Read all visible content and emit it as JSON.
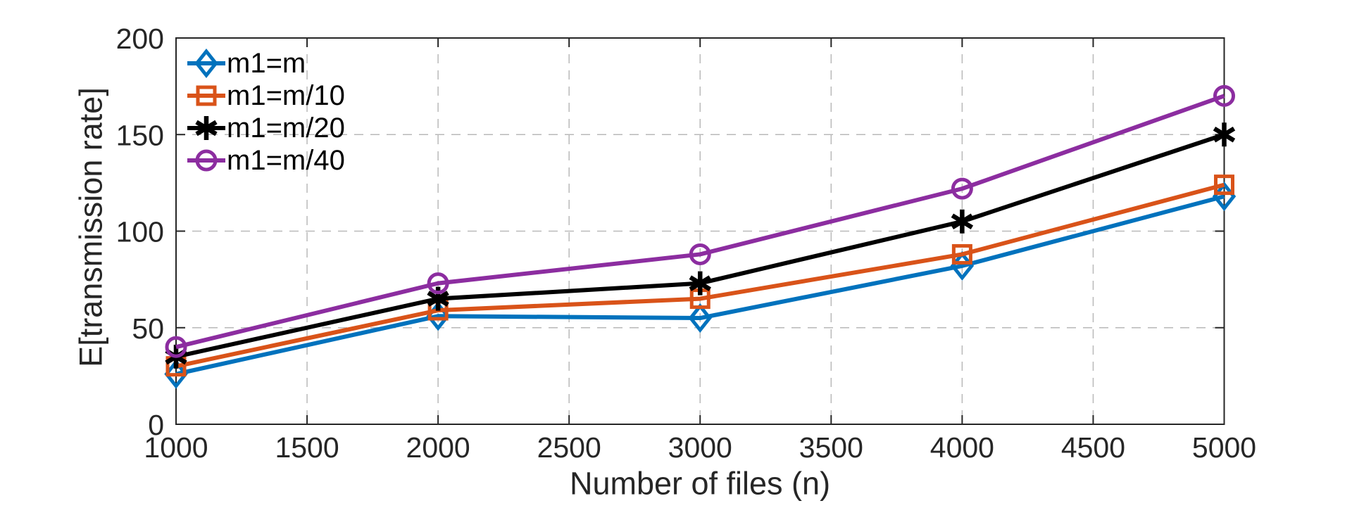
{
  "chart_data": {
    "type": "line",
    "title": "",
    "xlabel": "Number of files (n)",
    "ylabel": "E[transmission rate]",
    "x": [
      1000,
      2000,
      3000,
      4000,
      5000
    ],
    "xlim": [
      1000,
      5000
    ],
    "ylim": [
      0,
      200
    ],
    "x_ticks": [
      1000,
      1500,
      2000,
      2500,
      3000,
      3500,
      4000,
      4500,
      5000
    ],
    "y_ticks": [
      0,
      50,
      100,
      150,
      200
    ],
    "grid": "dashed",
    "legend_position": "top-left-inside",
    "series": [
      {
        "name": "m1=m",
        "marker": "diamond",
        "color": "#0072BD",
        "values": [
          26,
          56,
          55,
          82,
          118
        ]
      },
      {
        "name": "m1=m/10",
        "marker": "square",
        "color": "#D95319",
        "values": [
          30,
          59,
          65,
          88,
          124
        ]
      },
      {
        "name": "m1=m/20",
        "marker": "asterisk",
        "color": "#000000",
        "values": [
          35,
          65,
          73,
          105,
          150
        ]
      },
      {
        "name": "m1=m/40",
        "marker": "circle",
        "color": "#8C2DA0",
        "values": [
          40,
          73,
          88,
          122,
          170
        ]
      }
    ],
    "colors": {
      "grid": "#b9b9b9",
      "axis": "#262626",
      "tick_label": "#262626",
      "background": "#ffffff"
    }
  }
}
